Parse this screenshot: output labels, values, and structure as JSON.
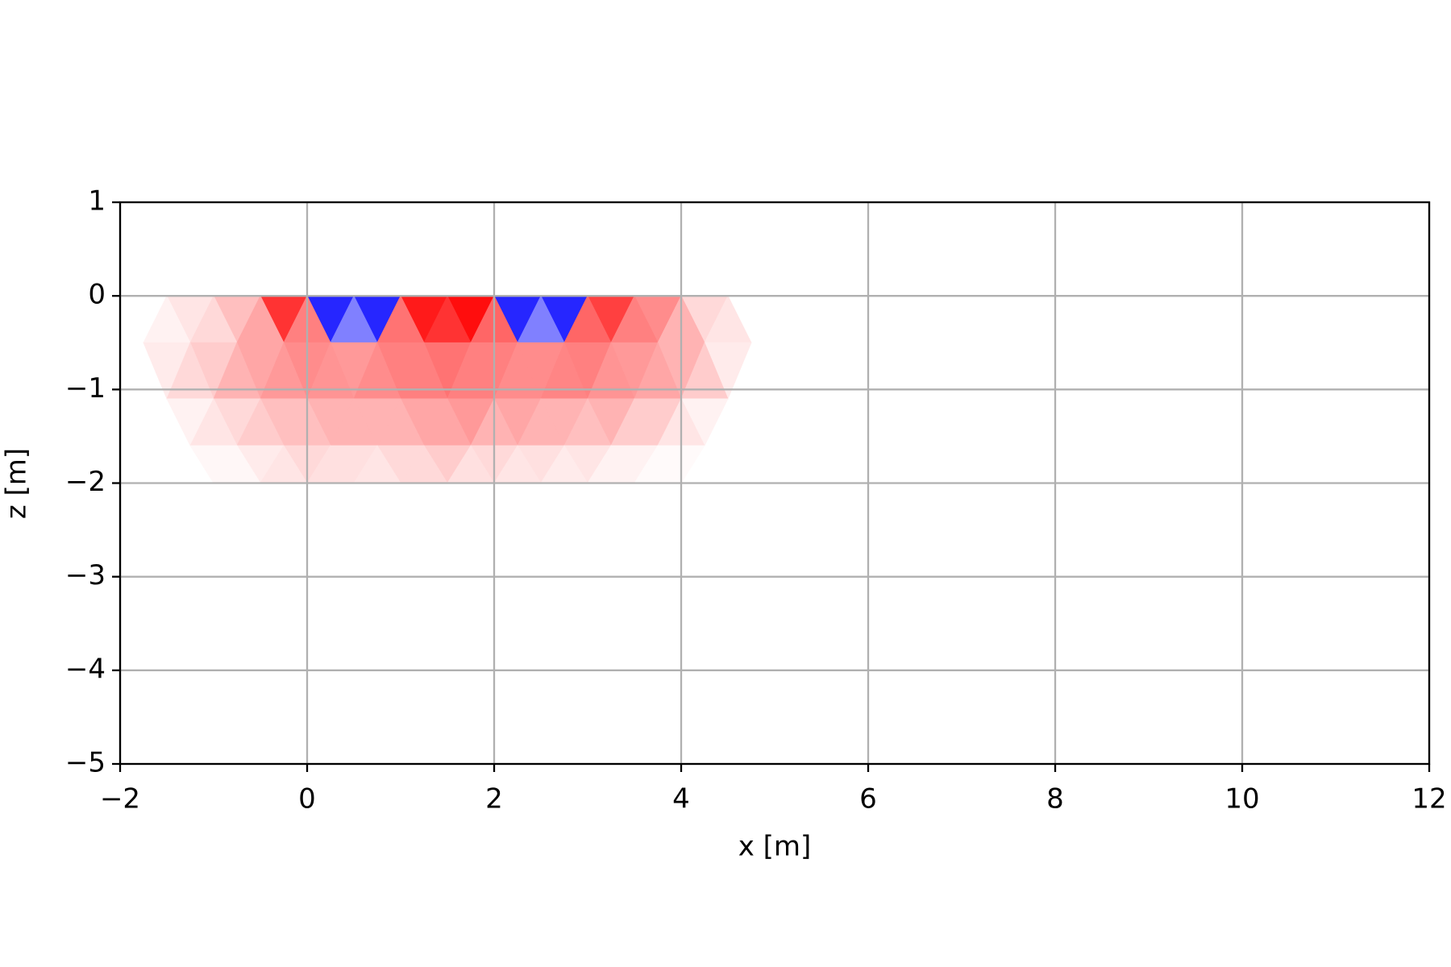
{
  "chart_data": {
    "type": "tripcolor",
    "xlabel": "x [m]",
    "ylabel": "z [m]",
    "xlim": [
      -2,
      12
    ],
    "ylim": [
      -5,
      1
    ],
    "xticks": [
      {
        "value": -2,
        "label": "−2"
      },
      0,
      2,
      4,
      6,
      8,
      10,
      12
    ],
    "yticks": [
      {
        "value": -5,
        "label": "−5"
      },
      {
        "value": -4,
        "label": "−4"
      },
      {
        "value": -3,
        "label": "−3"
      },
      {
        "value": -2,
        "label": "−2"
      },
      {
        "value": -1,
        "label": "−1"
      },
      0,
      1
    ],
    "grid": true,
    "grid_color": "#b0b0b0",
    "colormap": "bwr",
    "clim": [
      -1,
      1
    ],
    "triangles": [
      {
        "x": [
          -1.5,
          -1,
          -1.25
        ],
        "z": [
          0,
          0,
          -0.5
        ],
        "value": 0.1
      },
      {
        "x": [
          -1,
          -0.5,
          -0.75
        ],
        "z": [
          0,
          0,
          -0.5
        ],
        "value": 0.25
      },
      {
        "x": [
          -0.5,
          0,
          -0.25
        ],
        "z": [
          0,
          0,
          -0.5
        ],
        "value": 0.8
      },
      {
        "x": [
          0,
          0.5,
          0.25
        ],
        "z": [
          0,
          0,
          -0.5
        ],
        "value": -0.85
      },
      {
        "x": [
          0.5,
          1,
          0.75
        ],
        "z": [
          0,
          0,
          -0.5
        ],
        "value": -0.85
      },
      {
        "x": [
          1,
          1.5,
          1.25
        ],
        "z": [
          0,
          0,
          -0.5
        ],
        "value": 0.9
      },
      {
        "x": [
          1.5,
          2,
          1.75
        ],
        "z": [
          0,
          0,
          -0.5
        ],
        "value": 0.95
      },
      {
        "x": [
          2,
          2.5,
          2.25
        ],
        "z": [
          0,
          0,
          -0.5
        ],
        "value": -0.85
      },
      {
        "x": [
          2.5,
          3,
          2.75
        ],
        "z": [
          0,
          0,
          -0.5
        ],
        "value": -0.85
      },
      {
        "x": [
          3,
          3.5,
          3.25
        ],
        "z": [
          0,
          0,
          -0.5
        ],
        "value": 0.75
      },
      {
        "x": [
          3.5,
          4,
          3.75
        ],
        "z": [
          0,
          0,
          -0.5
        ],
        "value": 0.45
      },
      {
        "x": [
          4,
          4.5,
          4.25
        ],
        "z": [
          0,
          0,
          -0.5
        ],
        "value": 0.15
      },
      {
        "x": [
          -1.75,
          -1.25,
          -1.5
        ],
        "z": [
          -0.5,
          -0.5,
          0
        ],
        "value": 0.05
      },
      {
        "x": [
          -1.25,
          -0.75,
          -1
        ],
        "z": [
          -0.5,
          -0.5,
          0
        ],
        "value": 0.15
      },
      {
        "x": [
          -0.75,
          -0.25,
          -0.5
        ],
        "z": [
          -0.5,
          -0.5,
          0
        ],
        "value": 0.35
      },
      {
        "x": [
          -0.25,
          0.25,
          0
        ],
        "z": [
          -0.5,
          -0.5,
          0
        ],
        "value": 0.5
      },
      {
        "x": [
          0.25,
          0.75,
          0.5
        ],
        "z": [
          -0.5,
          -0.5,
          0
        ],
        "value": -0.5
      },
      {
        "x": [
          0.75,
          1.25,
          1
        ],
        "z": [
          -0.5,
          -0.5,
          0
        ],
        "value": 0.55
      },
      {
        "x": [
          1.25,
          1.75,
          1.5
        ],
        "z": [
          -0.5,
          -0.5,
          0
        ],
        "value": 0.8
      },
      {
        "x": [
          1.75,
          2.25,
          2
        ],
        "z": [
          -0.5,
          -0.5,
          0
        ],
        "value": 0.6
      },
      {
        "x": [
          2.25,
          2.75,
          2.5
        ],
        "z": [
          -0.5,
          -0.5,
          0
        ],
        "value": -0.5
      },
      {
        "x": [
          2.75,
          3.25,
          3
        ],
        "z": [
          -0.5,
          -0.5,
          0
        ],
        "value": 0.6
      },
      {
        "x": [
          3.25,
          3.75,
          3.5
        ],
        "z": [
          -0.5,
          -0.5,
          0
        ],
        "value": 0.5
      },
      {
        "x": [
          3.75,
          4.25,
          4
        ],
        "z": [
          -0.5,
          -0.5,
          0
        ],
        "value": 0.3
      },
      {
        "x": [
          4.25,
          4.75,
          4.5
        ],
        "z": [
          -0.5,
          -0.5,
          0
        ],
        "value": 0.1
      },
      {
        "x": [
          -1.75,
          -1.25,
          -1.5
        ],
        "z": [
          -0.5,
          -0.5,
          -1.1
        ],
        "value": 0.08
      },
      {
        "x": [
          -1.25,
          -0.75,
          -1
        ],
        "z": [
          -0.5,
          -0.5,
          -1.1
        ],
        "value": 0.2
      },
      {
        "x": [
          -0.75,
          -0.25,
          -0.5
        ],
        "z": [
          -0.5,
          -0.5,
          -1.1
        ],
        "value": 0.35
      },
      {
        "x": [
          -0.25,
          0.25,
          0
        ],
        "z": [
          -0.5,
          -0.5,
          -1.1
        ],
        "value": 0.45
      },
      {
        "x": [
          0.25,
          0.75,
          0.5
        ],
        "z": [
          -0.5,
          -0.5,
          -1.1
        ],
        "value": 0.4
      },
      {
        "x": [
          0.75,
          1.25,
          1
        ],
        "z": [
          -0.5,
          -0.5,
          -1.1
        ],
        "value": 0.5
      },
      {
        "x": [
          1.25,
          1.75,
          1.5
        ],
        "z": [
          -0.5,
          -0.5,
          -1.1
        ],
        "value": 0.55
      },
      {
        "x": [
          1.75,
          2.25,
          2
        ],
        "z": [
          -0.5,
          -0.5,
          -1.1
        ],
        "value": 0.5
      },
      {
        "x": [
          2.25,
          2.75,
          2.5
        ],
        "z": [
          -0.5,
          -0.5,
          -1.1
        ],
        "value": 0.45
      },
      {
        "x": [
          2.75,
          3.25,
          3
        ],
        "z": [
          -0.5,
          -0.5,
          -1.1
        ],
        "value": 0.5
      },
      {
        "x": [
          3.25,
          3.75,
          3.5
        ],
        "z": [
          -0.5,
          -0.5,
          -1.1
        ],
        "value": 0.4
      },
      {
        "x": [
          3.75,
          4.25,
          4
        ],
        "z": [
          -0.5,
          -0.5,
          -1.1
        ],
        "value": 0.3
      },
      {
        "x": [
          4.25,
          4.75,
          4.5
        ],
        "z": [
          -0.5,
          -0.5,
          -1.1
        ],
        "value": 0.08
      },
      {
        "x": [
          -1.5,
          -1,
          -1.25
        ],
        "z": [
          -1.1,
          -1.1,
          -0.5
        ],
        "value": 0.15
      },
      {
        "x": [
          -1,
          -0.5,
          -0.75
        ],
        "z": [
          -1.1,
          -1.1,
          -0.5
        ],
        "value": 0.3
      },
      {
        "x": [
          -0.5,
          0,
          -0.25
        ],
        "z": [
          -1.1,
          -1.1,
          -0.5
        ],
        "value": 0.4
      },
      {
        "x": [
          0,
          0.5,
          0.25
        ],
        "z": [
          -1.1,
          -1.1,
          -0.5
        ],
        "value": 0.42
      },
      {
        "x": [
          0.5,
          1,
          0.75
        ],
        "z": [
          -1.1,
          -1.1,
          -0.5
        ],
        "value": 0.45
      },
      {
        "x": [
          1,
          1.5,
          1.25
        ],
        "z": [
          -1.1,
          -1.1,
          -0.5
        ],
        "value": 0.5
      },
      {
        "x": [
          1.5,
          2,
          1.75
        ],
        "z": [
          -1.1,
          -1.1,
          -0.5
        ],
        "value": 0.5
      },
      {
        "x": [
          2,
          2.5,
          2.25
        ],
        "z": [
          -1.1,
          -1.1,
          -0.5
        ],
        "value": 0.45
      },
      {
        "x": [
          2.5,
          3,
          2.75
        ],
        "z": [
          -1.1,
          -1.1,
          -0.5
        ],
        "value": 0.48
      },
      {
        "x": [
          3,
          3.5,
          3.25
        ],
        "z": [
          -1.1,
          -1.1,
          -0.5
        ],
        "value": 0.42
      },
      {
        "x": [
          3.5,
          4,
          3.75
        ],
        "z": [
          -1.1,
          -1.1,
          -0.5
        ],
        "value": 0.35
      },
      {
        "x": [
          4,
          4.5,
          4.25
        ],
        "z": [
          -1.1,
          -1.1,
          -0.5
        ],
        "value": 0.2
      },
      {
        "x": [
          -1.5,
          -1,
          -1.25
        ],
        "z": [
          -1.1,
          -1.1,
          -1.6
        ],
        "value": 0.05
      },
      {
        "x": [
          -1,
          -0.5,
          -0.75
        ],
        "z": [
          -1.1,
          -1.1,
          -1.6
        ],
        "value": 0.15
      },
      {
        "x": [
          -0.5,
          0,
          -0.25
        ],
        "z": [
          -1.1,
          -1.1,
          -1.6
        ],
        "value": 0.25
      },
      {
        "x": [
          0,
          0.5,
          0.25
        ],
        "z": [
          -1.1,
          -1.1,
          -1.6
        ],
        "value": 0.3
      },
      {
        "x": [
          0.5,
          1,
          0.75
        ],
        "z": [
          -1.1,
          -1.1,
          -1.6
        ],
        "value": 0.3
      },
      {
        "x": [
          1,
          1.5,
          1.25
        ],
        "z": [
          -1.1,
          -1.1,
          -1.6
        ],
        "value": 0.35
      },
      {
        "x": [
          1.5,
          2,
          1.75
        ],
        "z": [
          -1.1,
          -1.1,
          -1.6
        ],
        "value": 0.4
      },
      {
        "x": [
          2,
          2.5,
          2.25
        ],
        "z": [
          -1.1,
          -1.1,
          -1.6
        ],
        "value": 0.35
      },
      {
        "x": [
          2.5,
          3,
          2.75
        ],
        "z": [
          -1.1,
          -1.1,
          -1.6
        ],
        "value": 0.3
      },
      {
        "x": [
          3,
          3.5,
          3.25
        ],
        "z": [
          -1.1,
          -1.1,
          -1.6
        ],
        "value": 0.3
      },
      {
        "x": [
          3.5,
          4,
          3.75
        ],
        "z": [
          -1.1,
          -1.1,
          -1.6
        ],
        "value": 0.2
      },
      {
        "x": [
          4,
          4.5,
          4.25
        ],
        "z": [
          -1.1,
          -1.1,
          -1.6
        ],
        "value": 0.05
      },
      {
        "x": [
          -1.25,
          -0.75,
          -1
        ],
        "z": [
          -1.6,
          -1.6,
          -1.1
        ],
        "value": 0.1
      },
      {
        "x": [
          -0.75,
          -0.25,
          -0.5
        ],
        "z": [
          -1.6,
          -1.6,
          -1.1
        ],
        "value": 0.2
      },
      {
        "x": [
          -0.25,
          0.25,
          0
        ],
        "z": [
          -1.6,
          -1.6,
          -1.1
        ],
        "value": 0.25
      },
      {
        "x": [
          0.25,
          0.75,
          0.5
        ],
        "z": [
          -1.6,
          -1.6,
          -1.1
        ],
        "value": 0.3
      },
      {
        "x": [
          0.75,
          1.25,
          1
        ],
        "z": [
          -1.6,
          -1.6,
          -1.1
        ],
        "value": 0.3
      },
      {
        "x": [
          1.25,
          1.75,
          1.5
        ],
        "z": [
          -1.6,
          -1.6,
          -1.1
        ],
        "value": 0.35
      },
      {
        "x": [
          1.75,
          2.25,
          2
        ],
        "z": [
          -1.6,
          -1.6,
          -1.1
        ],
        "value": 0.3
      },
      {
        "x": [
          2.25,
          2.75,
          2.5
        ],
        "z": [
          -1.6,
          -1.6,
          -1.1
        ],
        "value": 0.3
      },
      {
        "x": [
          2.75,
          3.25,
          3
        ],
        "z": [
          -1.6,
          -1.6,
          -1.1
        ],
        "value": 0.25
      },
      {
        "x": [
          3.25,
          3.75,
          3.5
        ],
        "z": [
          -1.6,
          -1.6,
          -1.1
        ],
        "value": 0.2
      },
      {
        "x": [
          3.75,
          4.25,
          4
        ],
        "z": [
          -1.6,
          -1.6,
          -1.1
        ],
        "value": 0.1
      },
      {
        "x": [
          -1.25,
          -0.75,
          -1
        ],
        "z": [
          -1.6,
          -1.6,
          -2
        ],
        "value": 0.03
      },
      {
        "x": [
          -0.75,
          -0.25,
          -0.5
        ],
        "z": [
          -1.6,
          -1.6,
          -2
        ],
        "value": 0.08
      },
      {
        "x": [
          -0.25,
          0.25,
          0
        ],
        "z": [
          -1.6,
          -1.6,
          -2
        ],
        "value": 0.15
      },
      {
        "x": [
          0.25,
          0.75,
          0.5
        ],
        "z": [
          -1.6,
          -1.6,
          -2
        ],
        "value": 0.12
      },
      {
        "x": [
          0.75,
          1.25,
          1
        ],
        "z": [
          -1.6,
          -1.6,
          -2
        ],
        "value": 0.15
      },
      {
        "x": [
          1.25,
          1.75,
          1.5
        ],
        "z": [
          -1.6,
          -1.6,
          -2
        ],
        "value": 0.2
      },
      {
        "x": [
          1.75,
          2.25,
          2
        ],
        "z": [
          -1.6,
          -1.6,
          -2
        ],
        "value": 0.15
      },
      {
        "x": [
          2.25,
          2.75,
          2.5
        ],
        "z": [
          -1.6,
          -1.6,
          -2
        ],
        "value": 0.12
      },
      {
        "x": [
          2.75,
          3.25,
          3
        ],
        "z": [
          -1.6,
          -1.6,
          -2
        ],
        "value": 0.1
      },
      {
        "x": [
          3.25,
          3.75,
          3.5
        ],
        "z": [
          -1.6,
          -1.6,
          -2
        ],
        "value": 0.05
      },
      {
        "x": [
          3.75,
          4.25,
          4
        ],
        "z": [
          -1.6,
          -1.6,
          -2
        ],
        "value": 0.02
      },
      {
        "x": [
          -1,
          -0.5,
          -0.75
        ],
        "z": [
          -2,
          -2,
          -1.6
        ],
        "value": 0.03
      },
      {
        "x": [
          -0.5,
          0,
          -0.25
        ],
        "z": [
          -2,
          -2,
          -1.6
        ],
        "value": 0.1
      },
      {
        "x": [
          0,
          0.5,
          0.25
        ],
        "z": [
          -2,
          -2,
          -1.6
        ],
        "value": 0.12
      },
      {
        "x": [
          0.5,
          1,
          0.75
        ],
        "z": [
          -2,
          -2,
          -1.6
        ],
        "value": 0.1
      },
      {
        "x": [
          1,
          1.5,
          1.25
        ],
        "z": [
          -2,
          -2,
          -1.6
        ],
        "value": 0.15
      },
      {
        "x": [
          1.5,
          2,
          1.75
        ],
        "z": [
          -2,
          -2,
          -1.6
        ],
        "value": 0.12
      },
      {
        "x": [
          2,
          2.5,
          2.25
        ],
        "z": [
          -2,
          -2,
          -1.6
        ],
        "value": 0.1
      },
      {
        "x": [
          2.5,
          3,
          2.75
        ],
        "z": [
          -2,
          -2,
          -1.6
        ],
        "value": 0.08
      },
      {
        "x": [
          3,
          3.5,
          3.25
        ],
        "z": [
          -2,
          -2,
          -1.6
        ],
        "value": 0.05
      },
      {
        "x": [
          3.5,
          4,
          3.75
        ],
        "z": [
          -2,
          -2,
          -1.6
        ],
        "value": 0.02
      }
    ]
  }
}
